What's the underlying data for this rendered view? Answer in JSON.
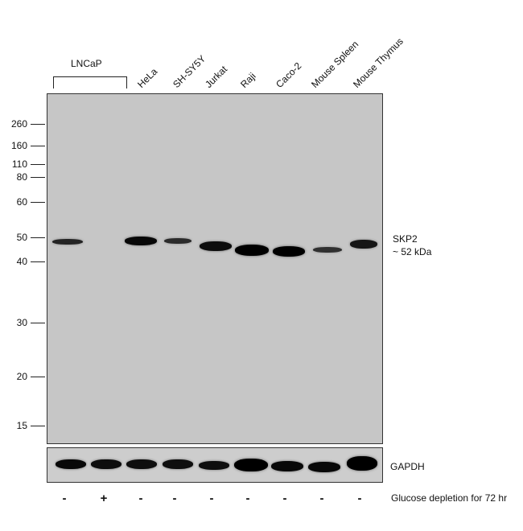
{
  "group_label": "LNCaP",
  "lanes": [
    {
      "label": ""
    },
    {
      "label": ""
    },
    {
      "label": "HeLa"
    },
    {
      "label": "SH-SY5Y"
    },
    {
      "label": "Jurkat"
    },
    {
      "label": "Raji"
    },
    {
      "label": "Caco-2"
    },
    {
      "label": "Mouse Spleen"
    },
    {
      "label": "Mouse Thymus"
    }
  ],
  "mw_markers": [
    "260",
    "160",
    "110",
    "80",
    "60",
    "50",
    "40",
    "30",
    "20",
    "15"
  ],
  "target_label": {
    "line1": "SKP2",
    "line2": "~ 52 kDa"
  },
  "loading_control_label": "GAPDH",
  "treatment": {
    "label": "Glucose depletion for 72 hr",
    "signs": [
      "-",
      "+",
      "-",
      "-",
      "-",
      "-",
      "-",
      "-",
      "-"
    ]
  },
  "skp2_band_intensity": [
    0.75,
    0.0,
    0.95,
    0.7,
    0.9,
    1.0,
    1.0,
    0.65,
    0.85
  ],
  "gapdh_band_intensity": [
    0.95,
    0.9,
    0.9,
    0.9,
    0.9,
    1.0,
    0.95,
    0.95,
    1.0
  ]
}
